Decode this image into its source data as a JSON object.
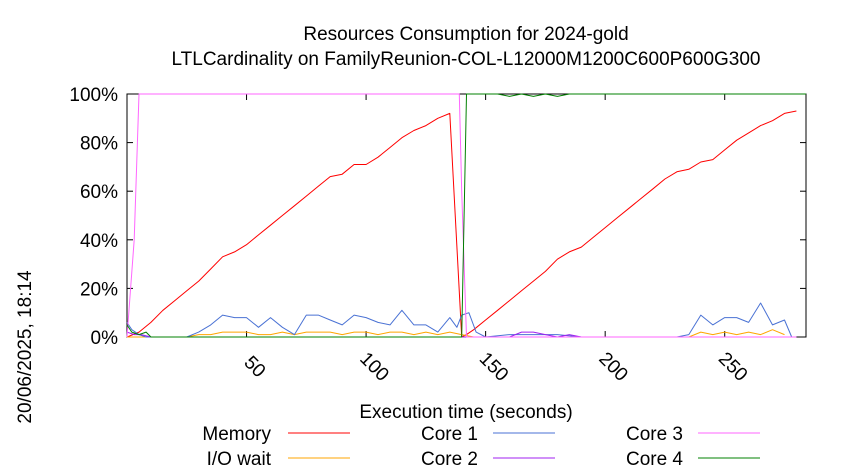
{
  "side_label": "20/06/2025, 18:14",
  "chart_data": {
    "type": "line",
    "title": "Resources Consumption for 2024-gold",
    "subtitle": "LTLCardinality on FamilyReunion-COL-L12000M1200C600P600G300",
    "xlabel": "Execution time (seconds)",
    "ylabel": "",
    "xlim": [
      0,
      284
    ],
    "ylim": [
      0,
      100
    ],
    "x_ticks": [
      50,
      100,
      150,
      200,
      250
    ],
    "y_ticks": [
      0,
      20,
      40,
      60,
      80,
      100
    ],
    "y_tick_labels": [
      "0%",
      "20%",
      "40%",
      "60%",
      "80%",
      "100%"
    ],
    "legend_position": "bottom",
    "series": [
      {
        "name": "Memory",
        "color": "#ff0000",
        "x": [
          0,
          5,
          10,
          15,
          20,
          25,
          30,
          35,
          40,
          45,
          50,
          55,
          60,
          65,
          70,
          75,
          80,
          85,
          90,
          95,
          100,
          105,
          110,
          115,
          120,
          125,
          130,
          135,
          140,
          142,
          145,
          150,
          155,
          160,
          165,
          170,
          175,
          180,
          185,
          190,
          195,
          200,
          205,
          210,
          215,
          220,
          225,
          230,
          235,
          240,
          245,
          250,
          255,
          260,
          265,
          270,
          275,
          280
        ],
        "y": [
          0,
          2,
          6,
          11,
          15,
          19,
          23,
          28,
          33,
          35,
          38,
          42,
          46,
          50,
          54,
          58,
          62,
          66,
          67,
          71,
          71,
          74,
          78,
          82,
          85,
          87,
          90,
          92,
          0,
          1,
          3,
          7,
          11,
          15,
          19,
          23,
          27,
          32,
          35,
          37,
          41,
          45,
          49,
          53,
          57,
          61,
          65,
          68,
          69,
          72,
          73,
          77,
          81,
          84,
          87,
          89,
          92,
          93
        ]
      },
      {
        "name": "I/O wait",
        "color": "#ffa500",
        "x": [
          0,
          5,
          10,
          15,
          20,
          25,
          30,
          35,
          40,
          45,
          50,
          55,
          60,
          65,
          70,
          75,
          80,
          85,
          90,
          95,
          100,
          105,
          110,
          115,
          120,
          125,
          130,
          135,
          140,
          145,
          150,
          200,
          235,
          240,
          245,
          250,
          255,
          260,
          265,
          270,
          275
        ],
        "y": [
          0,
          0,
          0,
          0,
          0,
          0,
          1,
          1,
          2,
          2,
          2,
          1,
          1,
          2,
          1,
          2,
          2,
          2,
          1,
          2,
          2,
          1,
          2,
          2,
          1,
          2,
          1,
          2,
          1,
          0,
          0,
          0,
          0,
          2,
          1,
          2,
          1,
          2,
          1,
          3,
          1
        ]
      },
      {
        "name": "Core 1",
        "color": "#4a72d4",
        "x": [
          0,
          2,
          5,
          8,
          12,
          15,
          20,
          25,
          30,
          35,
          40,
          45,
          50,
          55,
          60,
          65,
          70,
          75,
          80,
          85,
          90,
          95,
          100,
          105,
          110,
          115,
          120,
          125,
          130,
          135,
          138,
          140,
          143,
          146,
          150,
          160,
          165,
          170,
          180,
          190,
          200,
          230,
          235,
          240,
          245,
          250,
          255,
          260,
          265,
          270,
          275,
          278
        ],
        "y": [
          6,
          3,
          1,
          0,
          0,
          0,
          0,
          0,
          2,
          5,
          9,
          8,
          8,
          4,
          8,
          4,
          1,
          9,
          9,
          7,
          5,
          9,
          8,
          6,
          5,
          11,
          5,
          5,
          2,
          8,
          4,
          9,
          10,
          2,
          0,
          1,
          1,
          1,
          1,
          0,
          0,
          0,
          1,
          9,
          5,
          8,
          8,
          6,
          14,
          5,
          7,
          0
        ]
      },
      {
        "name": "Core 2",
        "color": "#a020f0",
        "x": [
          0,
          3,
          6,
          10,
          30,
          60,
          100,
          138,
          142,
          150,
          160,
          165,
          170,
          175,
          180,
          185,
          190,
          200,
          280
        ],
        "y": [
          2,
          1,
          1,
          0,
          0,
          0,
          0,
          0,
          0,
          0,
          0,
          2,
          2,
          1,
          0,
          1,
          0,
          0,
          0
        ]
      },
      {
        "name": "Core 3",
        "color": "#ff66ff",
        "x": [
          0,
          3,
          5,
          10,
          50,
          100,
          135,
          139,
          140,
          142,
          146,
          150,
          200,
          280
        ],
        "y": [
          0,
          40,
          100,
          100,
          100,
          100,
          100,
          100,
          60,
          0,
          0,
          0,
          0,
          0
        ]
      },
      {
        "name": "Core 4",
        "color": "#008000",
        "x": [
          0,
          2,
          5,
          8,
          10,
          15,
          50,
          100,
          138,
          140,
          142,
          145,
          150,
          155,
          160,
          165,
          170,
          175,
          180,
          185,
          190,
          200,
          250,
          284
        ],
        "y": [
          5,
          2,
          1,
          2,
          0,
          0,
          0,
          0,
          0,
          0,
          100,
          100,
          100,
          100,
          99,
          100,
          99,
          100,
          99,
          100,
          100,
          100,
          100,
          100
        ]
      }
    ]
  }
}
